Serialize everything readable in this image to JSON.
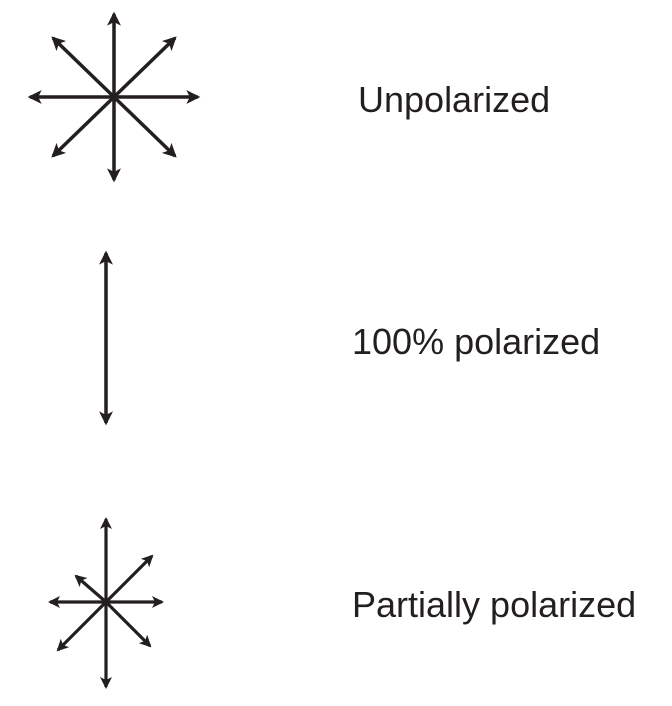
{
  "colors": {
    "ink": "#231f20",
    "background": "#ffffff"
  },
  "rows": [
    {
      "icon": "unpolarized-arrows-icon",
      "label": "Unpolarized"
    },
    {
      "icon": "vertical-double-arrow-icon",
      "label": "100% polarized"
    },
    {
      "icon": "partially-polarized-arrows-icon",
      "label": "Partially polarized"
    }
  ]
}
